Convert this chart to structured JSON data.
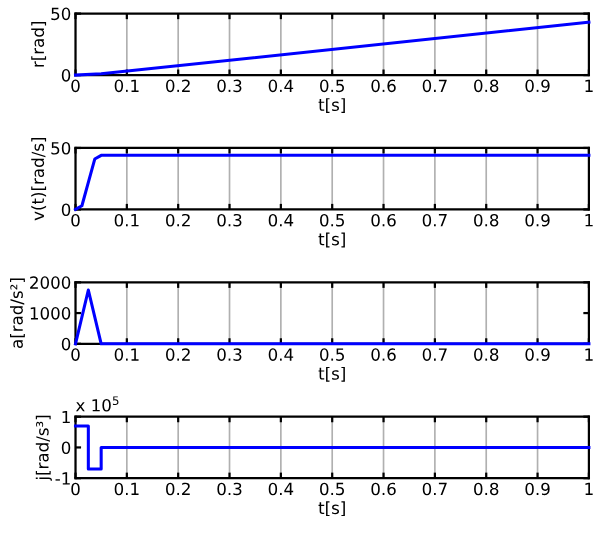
{
  "chart_data": [
    {
      "type": "line",
      "xlabel": "t[s]",
      "ylabel": "r[rad]",
      "x": [
        0,
        0.05,
        1
      ],
      "series": [
        {
          "color": "#0000ff",
          "values": [
            0,
            1,
            43
          ]
        }
      ],
      "xlim": [
        0,
        1
      ],
      "xticks": [
        0,
        0.1,
        0.2,
        0.3,
        0.4,
        0.5,
        0.6,
        0.7,
        0.8,
        0.9,
        1
      ],
      "ylim": [
        0,
        50
      ],
      "yticks": [
        0,
        50
      ],
      "grid": "x"
    },
    {
      "type": "line",
      "xlabel": "t[s]",
      "ylabel": "v(t)[rad/s]",
      "x": [
        0,
        0.0125,
        0.025,
        0.0375,
        0.05,
        1
      ],
      "series": [
        {
          "color": "#0000ff",
          "values": [
            0,
            3,
            22,
            41,
            44,
            44
          ]
        }
      ],
      "xlim": [
        0,
        1
      ],
      "xticks": [
        0,
        0.1,
        0.2,
        0.3,
        0.4,
        0.5,
        0.6,
        0.7,
        0.8,
        0.9,
        1
      ],
      "ylim": [
        0,
        50
      ],
      "yticks": [
        0,
        50
      ],
      "grid": "x"
    },
    {
      "type": "line",
      "xlabel": "t[s]",
      "ylabel": "a[rad/s²]",
      "x": [
        0,
        0.025,
        0.05,
        1
      ],
      "series": [
        {
          "color": "#0000ff",
          "values": [
            0,
            1750,
            0,
            0
          ]
        }
      ],
      "xlim": [
        0,
        1
      ],
      "xticks": [
        0,
        0.1,
        0.2,
        0.3,
        0.4,
        0.5,
        0.6,
        0.7,
        0.8,
        0.9,
        1
      ],
      "ylim": [
        0,
        2000
      ],
      "yticks": [
        0,
        1000,
        2000
      ],
      "grid": "x"
    },
    {
      "type": "step",
      "xlabel": "t[s]",
      "ylabel": "j[rad/s³]",
      "x": [
        0,
        0.025,
        0.05,
        1
      ],
      "series": [
        {
          "color": "#0000ff",
          "values": [
            0.7,
            -0.7,
            0,
            0
          ]
        }
      ],
      "xlim": [
        0,
        1
      ],
      "xticks": [
        0,
        0.1,
        0.2,
        0.3,
        0.4,
        0.5,
        0.6,
        0.7,
        0.8,
        0.9,
        1
      ],
      "ylim": [
        -1,
        1
      ],
      "yticks": [
        -1,
        0,
        1
      ],
      "grid": "x",
      "annotations": [
        "x 10$^{5}$"
      ]
    }
  ]
}
